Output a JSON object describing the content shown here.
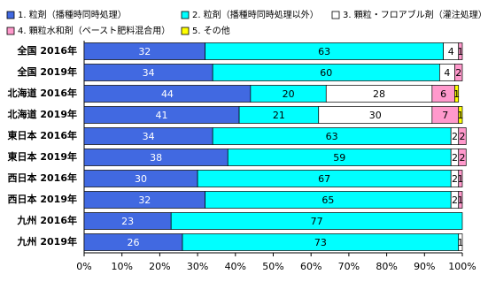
{
  "chart_data": {
    "type": "stacked-bar-horizontal",
    "categories": [
      "全国 2016年",
      "全国 2019年",
      "北海道 2016年",
      "北海道 2019年",
      "東日本 2016年",
      "東日本 2019年",
      "西日本 2016年",
      "西日本 2019年",
      "九州 2016年",
      "九州 2019年"
    ],
    "series": [
      {
        "name": "1. 粒剤（播種時同時処理）",
        "color": "#4169e1",
        "values": [
          32,
          34,
          44,
          41,
          34,
          38,
          30,
          32,
          23,
          26
        ]
      },
      {
        "name": "2. 粒剤（播種時同時処理以外）",
        "color": "#00ffff",
        "values": [
          63,
          60,
          20,
          21,
          63,
          59,
          67,
          65,
          77,
          73
        ]
      },
      {
        "name": "3. 顆粒・フロアブル剤（灌注処理）",
        "color": "#ffffff",
        "values": [
          4,
          4,
          28,
          30,
          2,
          2,
          2,
          2,
          0,
          1
        ]
      },
      {
        "name": "4. 顆粒水和剤（ペースト肥料混合用）",
        "color": "#ff99cc",
        "values": [
          1,
          2,
          6,
          7,
          2,
          2,
          1,
          1,
          0,
          0
        ]
      },
      {
        "name": "5. その他",
        "color": "#ffff00",
        "values": [
          0,
          0,
          1,
          1,
          0,
          0,
          0,
          0,
          0,
          0
        ]
      }
    ],
    "xlim": [
      0,
      100
    ],
    "xticks": [
      {
        "value": 0,
        "label": "0%"
      },
      {
        "value": 10,
        "label": "10%"
      },
      {
        "value": 20,
        "label": "20%"
      },
      {
        "value": 30,
        "label": "30%"
      },
      {
        "value": 40,
        "label": "40%"
      },
      {
        "value": 50,
        "label": "50%"
      },
      {
        "value": 60,
        "label": "60%"
      },
      {
        "value": 70,
        "label": "70%"
      },
      {
        "value": 80,
        "label": "80%"
      },
      {
        "value": 90,
        "label": "90%"
      },
      {
        "value": 100,
        "label": "100%"
      }
    ]
  }
}
